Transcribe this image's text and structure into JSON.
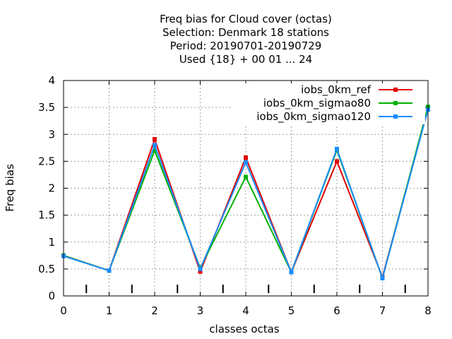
{
  "chart_data": {
    "type": "line",
    "title_lines": [
      "Freq bias  for Cloud cover (octas)",
      "Selection: Denmark     18 stations",
      "Period: 20190701-20190729",
      "Used {18} + 00 01 ... 24"
    ],
    "xlabel": "classes octas",
    "ylabel": "Freq bias",
    "xlim": [
      0,
      8
    ],
    "ylim": [
      0,
      4
    ],
    "x_ticks": [
      "0",
      "1",
      "2",
      "3",
      "4",
      "5",
      "6",
      "7",
      "8"
    ],
    "y_ticks": [
      "0",
      "0.5",
      "1",
      "1.5",
      "2",
      "2.5",
      "3",
      "3.5",
      "4"
    ],
    "grid": true,
    "legend_position": "top-right",
    "x": [
      0,
      1,
      2,
      3,
      4,
      5,
      6,
      7,
      8
    ],
    "series": [
      {
        "name": "iobs_0km_ref",
        "color": "#e00000",
        "values": [
          0.75,
          0.47,
          2.91,
          0.45,
          2.57,
          0.44,
          2.5,
          0.35,
          3.48
        ]
      },
      {
        "name": "iobs_0km_sigmao80",
        "color": "#00b000",
        "values": [
          0.75,
          0.47,
          2.7,
          0.52,
          2.21,
          0.44,
          2.71,
          0.33,
          3.51
        ]
      },
      {
        "name": "iobs_0km_sigmao120",
        "color": "#1a8cff",
        "values": [
          0.74,
          0.47,
          2.8,
          0.5,
          2.48,
          0.44,
          2.73,
          0.33,
          3.46
        ]
      }
    ]
  }
}
